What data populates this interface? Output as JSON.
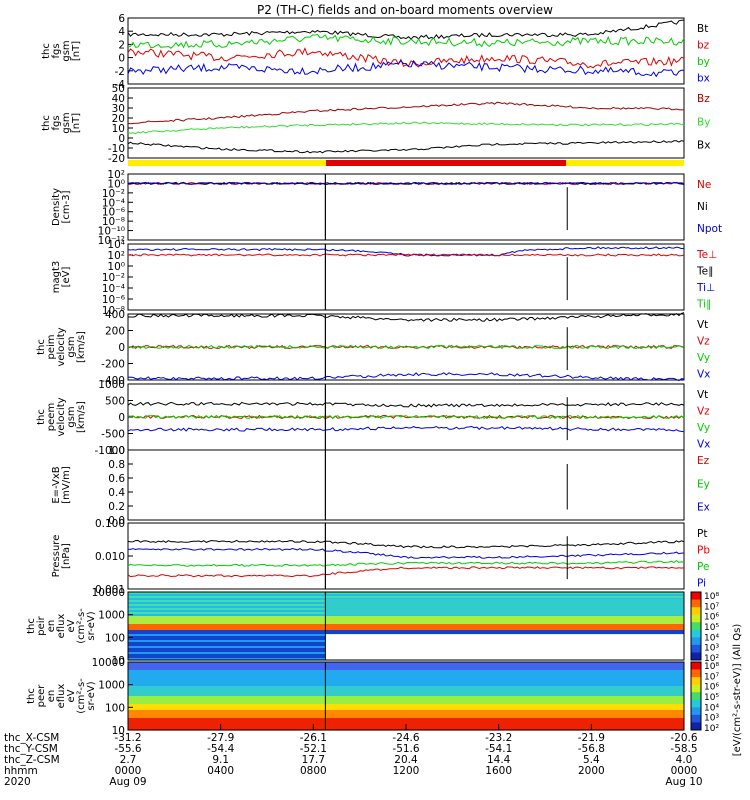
{
  "title": "P2 (TH-C) fields and on-board moments overview",
  "x_axis": {
    "rows": [
      {
        "label": "thc_X-CSM",
        "values": [
          "-31.2",
          "-27.9",
          "-26.1",
          "-24.6",
          "-23.2",
          "-21.9",
          "-20.6"
        ]
      },
      {
        "label": "thc_Y-CSM",
        "values": [
          "-55.6",
          "-54.4",
          "-52.1",
          "-51.6",
          "-54.1",
          "-56.8",
          "-58.5"
        ]
      },
      {
        "label": "thc_Z-CSM",
        "values": [
          "2.7",
          "9.1",
          "17.7",
          "20.4",
          "14.4",
          "5.4",
          "4.0"
        ]
      },
      {
        "label": "hhmm",
        "values": [
          "0000",
          "0400",
          "0800",
          "1200",
          "1600",
          "2000",
          "0000"
        ]
      }
    ],
    "date_row": {
      "label": "2020",
      "start": "Aug 09",
      "end": "Aug 10"
    }
  },
  "colorbar": {
    "ticks": [
      "10⁸",
      "10⁷",
      "10⁶",
      "10⁵",
      "10⁴",
      "10³",
      "10²"
    ],
    "label": "[eV/(cm²-s-str-eV)] (All Qs)"
  },
  "panels": [
    {
      "id": "p1",
      "ylabel": [
        "thc",
        "fgs",
        "gsm",
        "[nT]"
      ],
      "yticks": [
        "6",
        "4",
        "2",
        "0",
        "-2",
        "-4"
      ],
      "legend": [
        {
          "t": "Bt",
          "c": "#000000"
        },
        {
          "t": "bz",
          "c": "#e00000"
        },
        {
          "t": "by",
          "c": "#00cc00"
        },
        {
          "t": "bx",
          "c": "#0000e0"
        }
      ]
    },
    {
      "id": "p2",
      "ylabel": [
        "thc",
        "fgs",
        "gsm",
        "[nT]"
      ],
      "yticks": [
        "50",
        "40",
        "30",
        "20",
        "10",
        "0",
        "-10",
        "-20"
      ],
      "legend": [
        {
          "t": "Bz",
          "c": "#a00000"
        },
        {
          "t": "By",
          "c": "#33dd33"
        },
        {
          "t": "Bx",
          "c": "#000000"
        }
      ]
    },
    {
      "id": "p3",
      "ylabel": [
        "Density",
        "[cm-3]"
      ],
      "yticks": [
        "10²",
        "10⁰",
        "10⁻²",
        "10⁻⁴",
        "10⁻⁶",
        "10⁻⁸",
        "10⁻¹⁰",
        "10⁻¹²"
      ],
      "legend": [
        {
          "t": "Ne",
          "c": "#e00000"
        },
        {
          "t": "Ni",
          "c": "#000000"
        },
        {
          "t": "Npot",
          "c": "#0000e0"
        }
      ]
    },
    {
      "id": "p4",
      "ylabel": [
        "magt3",
        "[eV]"
      ],
      "yticks": [
        "10⁴",
        "10²",
        "10⁰",
        "10⁻²",
        "10⁻⁴",
        "10⁻⁶",
        "10⁻⁸"
      ],
      "legend": [
        {
          "t": "Te⊥",
          "c": "#e00000"
        },
        {
          "t": "Te∥",
          "c": "#000000"
        },
        {
          "t": "Ti⊥",
          "c": "#0000e0"
        },
        {
          "t": "Ti∥",
          "c": "#00cc00"
        }
      ]
    },
    {
      "id": "p5",
      "ylabel": [
        "thc",
        "peim",
        "velocity",
        "gsm",
        "[km/s]"
      ],
      "yticks": [
        "400",
        "200",
        "0",
        "-200",
        "-400"
      ],
      "legend": [
        {
          "t": "Vt",
          "c": "#000000"
        },
        {
          "t": "Vz",
          "c": "#e00000"
        },
        {
          "t": "Vy",
          "c": "#00cc00"
        },
        {
          "t": "Vx",
          "c": "#0000e0"
        }
      ]
    },
    {
      "id": "p6",
      "ylabel": [
        "thc",
        "peem",
        "velocity",
        "gsm",
        "[km/s]"
      ],
      "yticks": [
        "1000",
        "500",
        "0",
        "-500",
        "-1000"
      ],
      "legend": [
        {
          "t": "Vt",
          "c": "#000000"
        },
        {
          "t": "Vz",
          "c": "#e00000"
        },
        {
          "t": "Vy",
          "c": "#00cc00"
        },
        {
          "t": "Vx",
          "c": "#0000e0"
        }
      ]
    },
    {
      "id": "p7",
      "ylabel": [
        "E=-VxB",
        "[mV/m]"
      ],
      "yticks": [
        "1.0",
        "0.8",
        "0.6",
        "0.4",
        "0.2",
        "0.0"
      ],
      "legend": [
        {
          "t": "Ez",
          "c": "#e00000"
        },
        {
          "t": "Ey",
          "c": "#00cc00"
        },
        {
          "t": "Ex",
          "c": "#0000e0"
        }
      ]
    },
    {
      "id": "p8",
      "ylabel": [
        "Pressure",
        "[nPa]"
      ],
      "yticks": [
        "0.100",
        "0.010",
        "0.001"
      ],
      "legend": [
        {
          "t": "Pt",
          "c": "#000000"
        },
        {
          "t": "Pb",
          "c": "#e00000"
        },
        {
          "t": "Pe",
          "c": "#00cc00"
        },
        {
          "t": "Pi",
          "c": "#0000e0"
        }
      ]
    },
    {
      "id": "p9",
      "ylabel": [
        "thc",
        "peir",
        "en",
        "eflux",
        "eV",
        "(cm²-s-",
        "sr-eV)"
      ],
      "yticks": [
        "10000",
        "1000",
        "100",
        "10"
      ],
      "legend": []
    },
    {
      "id": "p10",
      "ylabel": [
        "thc",
        "peer",
        "en",
        "eflux",
        "eV",
        "(cm²-s-",
        "sr-eV)"
      ],
      "yticks": [
        "10000",
        "1000",
        "100",
        "10"
      ],
      "legend": []
    }
  ],
  "chart_data": {
    "type": "line",
    "title": "P2 (TH-C) fields and on-board moments overview",
    "x": [
      "0000",
      "0400",
      "0800",
      "1200",
      "1600",
      "2000",
      "0000"
    ],
    "panels": [
      {
        "ylabel": "thc fgs gsm [nT]",
        "ylim": [
          -4,
          6
        ],
        "series": [
          {
            "name": "Bt",
            "values": [
              3.5,
              3.5,
              4.0,
              3.0,
              3.5,
              3.5,
              5.5
            ]
          },
          {
            "name": "bz",
            "values": [
              1,
              0,
              1,
              -1,
              0,
              -1,
              -0.5
            ]
          },
          {
            "name": "by",
            "values": [
              2,
              2,
              3,
              2.5,
              2.2,
              2.5,
              2.5
            ]
          },
          {
            "name": "bx",
            "values": [
              -2,
              -1.5,
              -2,
              -1,
              -1.5,
              -2,
              -2.5
            ]
          }
        ]
      },
      {
        "ylabel": "thc fgs gsm [nT]",
        "ylim": [
          -20,
          50
        ],
        "series": [
          {
            "name": "Bz",
            "values": [
              15,
              20,
              27,
              31,
              35,
              30,
              29
            ]
          },
          {
            "name": "By",
            "values": [
              5,
              10,
              13,
              15,
              14,
              13,
              14
            ]
          },
          {
            "name": "Bx",
            "values": [
              -5,
              -11,
              -14,
              -12,
              -6,
              -5,
              -3
            ]
          }
        ]
      },
      {
        "ylabel": "Density [cm-3]",
        "scale": "log",
        "series": [
          {
            "name": "Ne",
            "values": [
              1,
              1,
              1,
              1,
              1,
              1,
              1
            ]
          },
          {
            "name": "Ni",
            "values": [
              1,
              1,
              1,
              1,
              1,
              1,
              1
            ]
          },
          {
            "name": "Npot",
            "values": [
              1,
              1,
              1,
              1,
              1,
              1,
              1
            ]
          }
        ]
      },
      {
        "ylabel": "magt3 [eV]",
        "scale": "log",
        "series": [
          {
            "name": "Ti⊥",
            "values": [
              1000,
              1000,
              1000,
              100,
              100,
              2000,
              2000
            ]
          },
          {
            "name": "Te⊥",
            "values": [
              100,
              100,
              100,
              100,
              100,
              100,
              100
            ]
          }
        ]
      },
      {
        "ylabel": "thc peim velocity gsm [km/s]",
        "ylim": [
          -400,
          400
        ],
        "series": [
          {
            "name": "Vt",
            "values": [
              380,
              380,
              380,
              330,
              330,
              370,
              400
            ]
          },
          {
            "name": "Vz",
            "values": [
              0,
              0,
              0,
              0,
              0,
              0,
              0
            ]
          },
          {
            "name": "Vy",
            "values": [
              0,
              0,
              0,
              0,
              0,
              0,
              0
            ]
          },
          {
            "name": "Vx",
            "values": [
              -380,
              -380,
              -380,
              -330,
              -330,
              -370,
              -400
            ]
          }
        ]
      },
      {
        "ylabel": "thc peem velocity gsm [km/s]",
        "ylim": [
          -1000,
          1000
        ],
        "series": [
          {
            "name": "Vt",
            "values": [
              400,
              400,
              400,
              350,
              350,
              380,
              400
            ]
          },
          {
            "name": "Vz",
            "values": [
              0,
              0,
              0,
              0,
              0,
              0,
              0
            ]
          },
          {
            "name": "Vy",
            "values": [
              0,
              0,
              0,
              0,
              0,
              0,
              0
            ]
          },
          {
            "name": "Vx",
            "values": [
              -380,
              -380,
              -380,
              -330,
              -330,
              -370,
              -400
            ]
          }
        ]
      },
      {
        "ylabel": "E=-VxB [mV/m]",
        "ylim": [
          0,
          1
        ],
        "series": []
      },
      {
        "ylabel": "Pressure [nPa]",
        "scale": "log",
        "series": [
          {
            "name": "Pt",
            "values": [
              0.04,
              0.04,
              0.04,
              0.025,
              0.025,
              0.03,
              0.04
            ]
          },
          {
            "name": "Pb",
            "values": [
              0.002,
              0.002,
              0.002,
              0.004,
              0.004,
              0.004,
              0.004
            ]
          },
          {
            "name": "Pe",
            "values": [
              0.005,
              0.005,
              0.005,
              0.006,
              0.006,
              0.006,
              0.007
            ]
          },
          {
            "name": "Pi",
            "values": [
              0.02,
              0.02,
              0.02,
              0.01,
              0.01,
              0.012,
              0.015
            ]
          }
        ]
      }
    ]
  }
}
